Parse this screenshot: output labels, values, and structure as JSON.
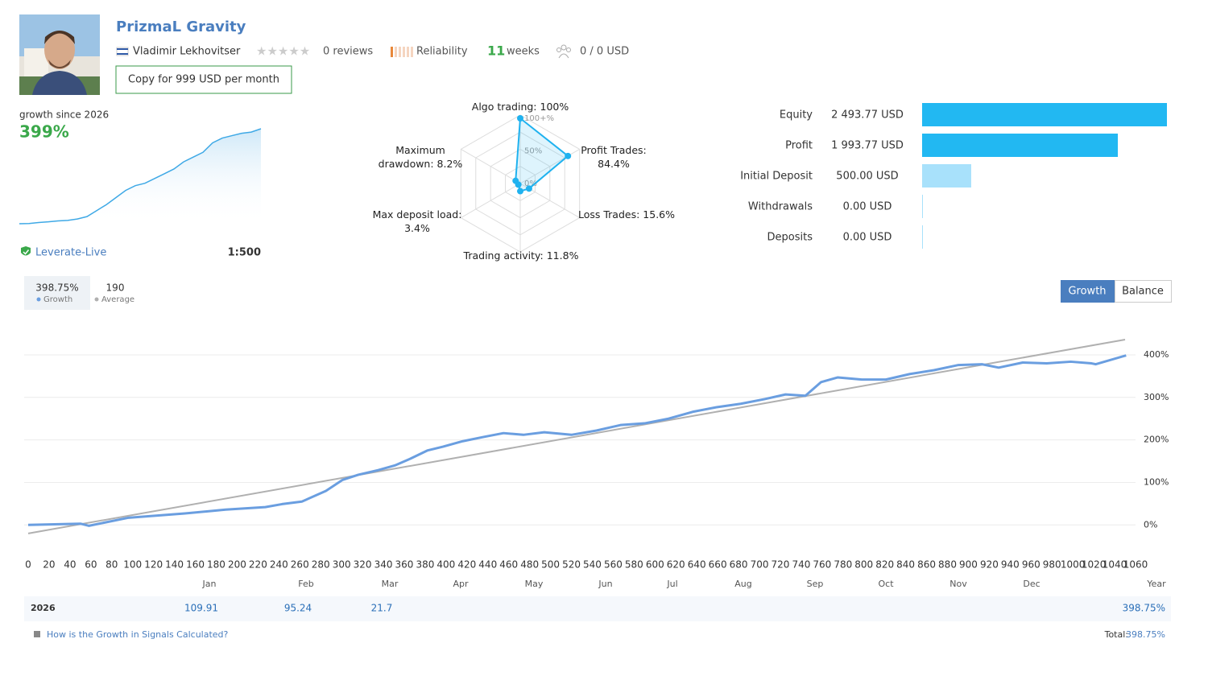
{
  "header": {
    "title": "PrizmaL Gravity",
    "author": "Vladimir Lekhovitser",
    "reviews": "0 reviews",
    "reliability": "Reliability",
    "weeks_count": "11",
    "weeks_label": "weeks",
    "subscribers": "0 / 0 USD",
    "copy_button": "Copy for 999 USD per month"
  },
  "summary": {
    "growth_label": "growth since 2026",
    "growth_value": "399%",
    "broker": "Leverate-Live",
    "leverage": "1:500"
  },
  "sparkline": {
    "type": "area",
    "values": [
      0,
      1,
      5,
      8,
      12,
      14,
      20,
      30,
      55,
      80,
      110,
      140,
      160,
      170,
      190,
      210,
      230,
      260,
      280,
      300,
      340,
      360,
      370,
      380,
      385,
      399
    ],
    "color": "#3fa9e6"
  },
  "radar": {
    "type": "radar",
    "color": "#1fb2ef",
    "axes": [
      {
        "label": "Algo trading: 100%",
        "value": 100
      },
      {
        "label": "Profit Trades: 84.4%",
        "value": 84.4
      },
      {
        "label": "Loss Trades: 15.6%",
        "value": 15.6
      },
      {
        "label": "Trading activity: 11.8%",
        "value": 11.8
      },
      {
        "label": "Max deposit load: 3.4%",
        "value": 3.4
      },
      {
        "label": "Maximum drawdown: 8.2%",
        "value": 8.2
      }
    ],
    "rticks": [
      {
        "value": 0,
        "label": "0%"
      },
      {
        "value": 50,
        "label": "50%"
      },
      {
        "value": 100,
        "label": "100+%"
      }
    ]
  },
  "balance_bars": {
    "type": "bar",
    "orientation": "horizontal",
    "categories": [
      "Equity",
      "Profit",
      "Initial Deposit",
      "Withdrawals",
      "Deposits"
    ],
    "values": [
      2493.77,
      1993.77,
      500,
      0,
      0
    ],
    "value_labels": [
      "2 493.77 USD",
      "1 993.77 USD",
      "500.00 USD",
      "0.00 USD",
      "0.00 USD"
    ],
    "colors": [
      "#22b8f2",
      "#22b8f2",
      "#a8e1fb",
      "#a8e1fb",
      "#a8e1fb"
    ]
  },
  "chart_data": {
    "type": "line",
    "tabs": [
      "Growth",
      "Balance"
    ],
    "active_tab": "Growth",
    "series": [
      {
        "name": "Growth",
        "summary": "398.75%",
        "color": "#6a9ee0",
        "x": [
          0,
          50,
          58,
          96,
          150,
          189,
          227,
          243,
          262,
          285,
          301,
          316,
          335,
          351,
          366,
          382,
          397,
          416,
          436,
          455,
          474,
          494,
          520,
          544,
          567,
          590,
          613,
          636,
          659,
          682,
          705,
          725,
          744,
          759,
          775,
          798,
          821,
          844,
          867,
          890,
          913,
          929,
          952,
          975,
          998,
          1018,
          1022,
          1051
        ],
        "values": [
          0,
          3,
          -2,
          17,
          27,
          36,
          42,
          49,
          55,
          80,
          106,
          118,
          129,
          140,
          156,
          175,
          184,
          197,
          207,
          216,
          212,
          218,
          212,
          222,
          235,
          239,
          250,
          266,
          277,
          285,
          296,
          307,
          304,
          336,
          347,
          342,
          342,
          355,
          364,
          376,
          378,
          370,
          382,
          380,
          384,
          380,
          378,
          398.75
        ]
      },
      {
        "name": "Average",
        "summary": "190",
        "color": "#b0b0b0",
        "x": [
          0,
          1050
        ],
        "values": [
          -20,
          436
        ]
      }
    ],
    "xlim": [
      0,
      1060
    ],
    "ylim": [
      -60,
      470
    ],
    "xticks": [
      0,
      20,
      40,
      60,
      80,
      100,
      120,
      140,
      160,
      180,
      200,
      220,
      240,
      260,
      280,
      300,
      320,
      340,
      360,
      380,
      400,
      420,
      440,
      460,
      480,
      500,
      520,
      540,
      560,
      580,
      600,
      620,
      640,
      660,
      680,
      700,
      720,
      740,
      760,
      780,
      800,
      820,
      840,
      860,
      880,
      900,
      920,
      940,
      960,
      980,
      1000,
      1020,
      1040,
      1060
    ],
    "yticks": [
      {
        "value": 0,
        "label": "0%"
      },
      {
        "value": 100,
        "label": "100%"
      },
      {
        "value": 200,
        "label": "200%"
      },
      {
        "value": 300,
        "label": "300%"
      },
      {
        "value": 400,
        "label": "400%"
      }
    ],
    "grid": true,
    "months": [
      "Jan",
      "Feb",
      "Mar",
      "Apr",
      "May",
      "Jun",
      "Jul",
      "Aug",
      "Sep",
      "Oct",
      "Nov",
      "Dec",
      "Year"
    ]
  },
  "table": {
    "rows": [
      {
        "year": "2026",
        "cells": [
          "109.91",
          "95.24",
          "21.7",
          null,
          null,
          null,
          null,
          null,
          null,
          null,
          null,
          null,
          "398.75%"
        ]
      }
    ]
  },
  "footer": {
    "link": "How is the Growth in Signals Calculated?",
    "total_label": "Total:",
    "total_value": "398.75%"
  }
}
